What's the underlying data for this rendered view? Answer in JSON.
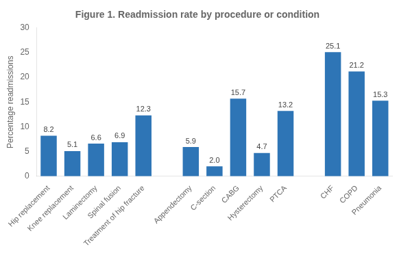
{
  "chart_data": {
    "type": "bar",
    "title": "Figure 1. Readmission rate by procedure or condition",
    "ylabel": "Percentage readmissions",
    "categories": [
      "Hip replacement",
      "Knee replacement",
      "Laminectomy",
      "Spinal fusion",
      "Treatment of hip fracture",
      null,
      "Appendectomy",
      "C-section",
      "CABG",
      "Hysterectomy",
      "PTCA",
      null,
      "CHF",
      "COPD",
      "Pneumonia"
    ],
    "values": [
      8.2,
      5.1,
      6.6,
      6.9,
      12.3,
      null,
      5.9,
      2.0,
      15.7,
      4.7,
      13.2,
      null,
      25.1,
      21.2,
      15.3
    ],
    "value_labels": [
      "8.2",
      "5.1",
      "6.6",
      "6.9",
      "12.3",
      null,
      "5.9",
      "2.0",
      "15.7",
      "4.7",
      "13.2",
      null,
      "25.1",
      "21.2",
      "15.3"
    ],
    "color": "#2E75B6",
    "ylim": [
      0,
      30
    ],
    "yticks": [
      0,
      5,
      10,
      15,
      20,
      25,
      30
    ],
    "grid": false,
    "data_labels": true
  }
}
